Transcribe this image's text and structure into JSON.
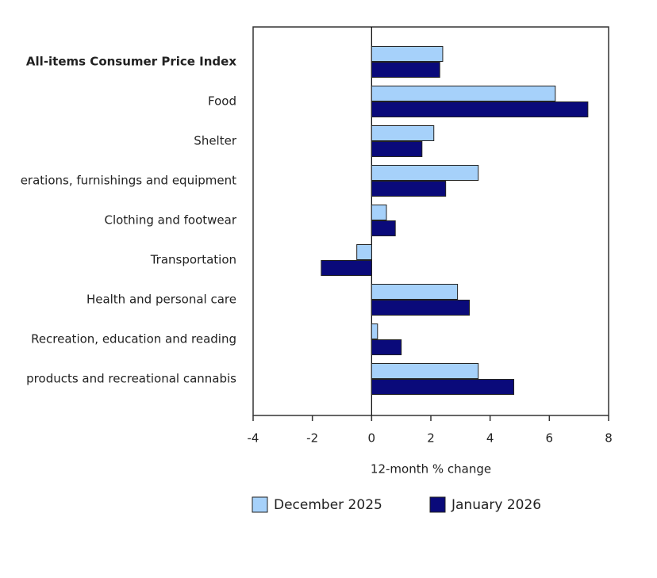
{
  "chart_data": {
    "type": "hbar",
    "categories": [
      "All-items Consumer Price Index",
      "Food",
      "Shelter",
      "erations, furnishings and equipment",
      "Clothing and footwear",
      "Transportation",
      "Health and personal care",
      "Recreation, education and reading",
      "products and recreational cannabis"
    ],
    "series": [
      {
        "name": "December 2025",
        "color": "#a6d1fa",
        "values": [
          2.4,
          6.2,
          2.1,
          3.6,
          0.5,
          -0.5,
          2.9,
          0.2,
          3.6
        ]
      },
      {
        "name": "January 2026",
        "color": "#0a0a7a",
        "values": [
          2.3,
          7.3,
          1.7,
          2.5,
          0.8,
          -1.7,
          3.3,
          1.0,
          4.8
        ]
      }
    ],
    "xlabel": "12-month % change",
    "xlim": [
      -4,
      8
    ],
    "xticks": [
      -4,
      -2,
      0,
      2,
      4,
      6,
      8
    ],
    "legend": "bottom"
  }
}
